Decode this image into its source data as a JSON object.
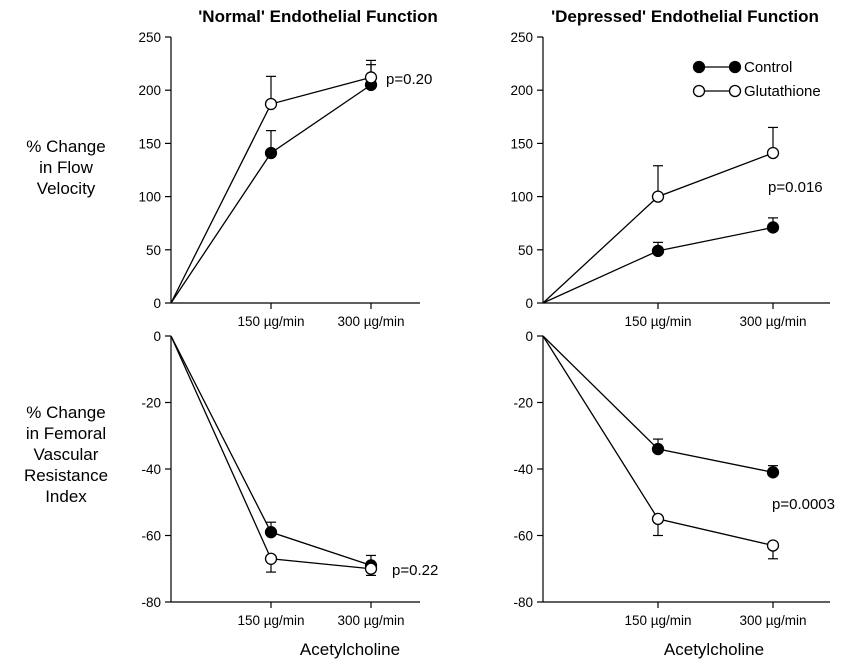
{
  "y_axis_labels": {
    "top": [
      "% Change",
      "in Flow",
      "Velocity"
    ],
    "bottom": [
      "% Change",
      "in Femoral",
      "Vascular",
      "Resistance",
      "Index"
    ]
  },
  "x_axis_label": "Acetylcholine",
  "legend": {
    "series": [
      {
        "name": "Control",
        "marker": "filled"
      },
      {
        "name": "Glutathione",
        "marker": "open"
      }
    ]
  },
  "colors": {
    "ink": "#000000",
    "background": "#ffffff"
  },
  "chart_data": [
    {
      "id": "normal-flow",
      "type": "line",
      "title": "'Normal' Endothelial Function",
      "x": [
        0,
        150,
        300
      ],
      "xtick_labels": [
        "150 µg/min",
        "300 µg/min"
      ],
      "ylim": [
        0,
        250
      ],
      "yticks": [
        0,
        50,
        100,
        150,
        200,
        250
      ],
      "series": [
        {
          "name": "Control",
          "marker": "filled",
          "values": [
            0,
            141,
            205
          ],
          "errors": [
            0,
            21,
            23
          ],
          "err_dir": [
            0,
            1,
            1
          ]
        },
        {
          "name": "Glutathione",
          "marker": "open",
          "values": [
            0,
            187,
            212
          ],
          "errors": [
            0,
            26,
            12
          ],
          "err_dir": [
            0,
            1,
            1
          ]
        }
      ],
      "annotation": "p=0.20",
      "legend": false
    },
    {
      "id": "depressed-flow",
      "type": "line",
      "title": "'Depressed' Endothelial Function",
      "x": [
        0,
        150,
        300
      ],
      "xtick_labels": [
        "150 µg/min",
        "300 µg/min"
      ],
      "ylim": [
        0,
        250
      ],
      "yticks": [
        0,
        50,
        100,
        150,
        200,
        250
      ],
      "series": [
        {
          "name": "Control",
          "marker": "filled",
          "values": [
            0,
            49,
            71
          ],
          "errors": [
            0,
            8,
            9
          ],
          "err_dir": [
            0,
            1,
            1
          ]
        },
        {
          "name": "Glutathione",
          "marker": "open",
          "values": [
            0,
            100,
            141
          ],
          "errors": [
            0,
            29,
            24
          ],
          "err_dir": [
            0,
            1,
            1
          ]
        }
      ],
      "annotation": "p=0.016",
      "legend": true
    },
    {
      "id": "normal-resistance",
      "type": "line",
      "title": "",
      "x": [
        0,
        150,
        300
      ],
      "xtick_labels": [
        "150 µg/min",
        "300 µg/min"
      ],
      "ylim": [
        -80,
        0
      ],
      "yticks": [
        -80,
        -60,
        -40,
        -20,
        0
      ],
      "series": [
        {
          "name": "Control",
          "marker": "filled",
          "values": [
            0,
            -59,
            -69
          ],
          "errors": [
            0,
            3,
            3
          ],
          "err_dir": [
            0,
            1,
            1
          ]
        },
        {
          "name": "Glutathione",
          "marker": "open",
          "values": [
            0,
            -67,
            -70
          ],
          "errors": [
            0,
            4,
            2
          ],
          "err_dir": [
            0,
            -1,
            -1
          ]
        }
      ],
      "annotation": "p=0.22",
      "legend": false
    },
    {
      "id": "depressed-resistance",
      "type": "line",
      "title": "",
      "x": [
        0,
        150,
        300
      ],
      "xtick_labels": [
        "150 µg/min",
        "300 µg/min"
      ],
      "ylim": [
        -80,
        0
      ],
      "yticks": [
        -80,
        -60,
        -40,
        -20,
        0
      ],
      "series": [
        {
          "name": "Control",
          "marker": "filled",
          "values": [
            0,
            -34,
            -41
          ],
          "errors": [
            0,
            3,
            2
          ],
          "err_dir": [
            0,
            1,
            1
          ]
        },
        {
          "name": "Glutathione",
          "marker": "open",
          "values": [
            0,
            -55,
            -63
          ],
          "errors": [
            0,
            5,
            4
          ],
          "err_dir": [
            0,
            -1,
            -1
          ]
        }
      ],
      "annotation": "p=0.0003",
      "legend": false
    }
  ]
}
